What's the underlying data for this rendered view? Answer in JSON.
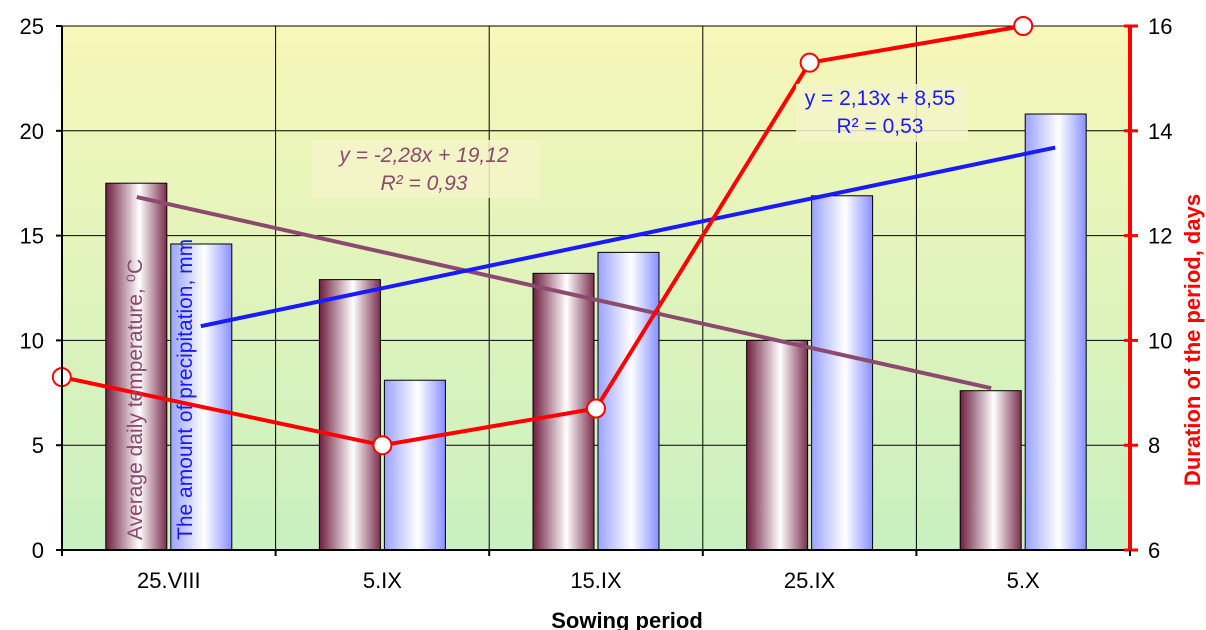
{
  "chart_data": {
    "type": "bar",
    "categories": [
      "25.VIII",
      "5.IX",
      "15.IX",
      "25.IX",
      "5.X"
    ],
    "xlabel": "Sowing period",
    "ylabel_left_temperature": "Average daily temperature, ⁰C",
    "ylabel_left_precipitation": "The amount of precipitation, mm",
    "ylabel_right": "Duration of the period, days",
    "ylim": [
      0,
      25
    ],
    "yticks": [
      0,
      5,
      10,
      15,
      20,
      25
    ],
    "y2lim": [
      6,
      16
    ],
    "y2ticks": [
      6,
      8,
      10,
      12,
      14,
      16
    ],
    "grid": true,
    "series": [
      {
        "name": "Average daily temperature, ⁰C",
        "type": "bar",
        "axis": "left",
        "values": [
          17.5,
          12.9,
          13.2,
          10.0,
          7.6
        ]
      },
      {
        "name": "The amount of precipitation, mm",
        "type": "bar",
        "axis": "left",
        "values": [
          14.6,
          8.1,
          14.2,
          16.9,
          20.8
        ]
      },
      {
        "name": "Duration of the period, days",
        "type": "line",
        "axis": "right",
        "values": [
          9.3,
          8.0,
          8.7,
          15.3,
          16.0
        ]
      }
    ],
    "trendlines": [
      {
        "label_line1": "y = -2,28x + 19,12",
        "label_line2": "R² = 0,93",
        "slope": -2.28,
        "intercept": 19.12
      },
      {
        "label_line1": "y = 2,13x + 8,55",
        "label_line2": "R² = 0,53",
        "slope": 2.13,
        "intercept": 8.55
      }
    ],
    "colors": {
      "temperature_bar": "#7a2e4e",
      "precipitation_bar": "#9aa2ff",
      "duration_line": "#ff0000",
      "temperature_trend": "#8b4a6e",
      "precipitation_trend": "#1a1aff",
      "plot_bg_top": "#f7f7b8",
      "plot_bg_bottom": "#c8f0c0"
    }
  }
}
